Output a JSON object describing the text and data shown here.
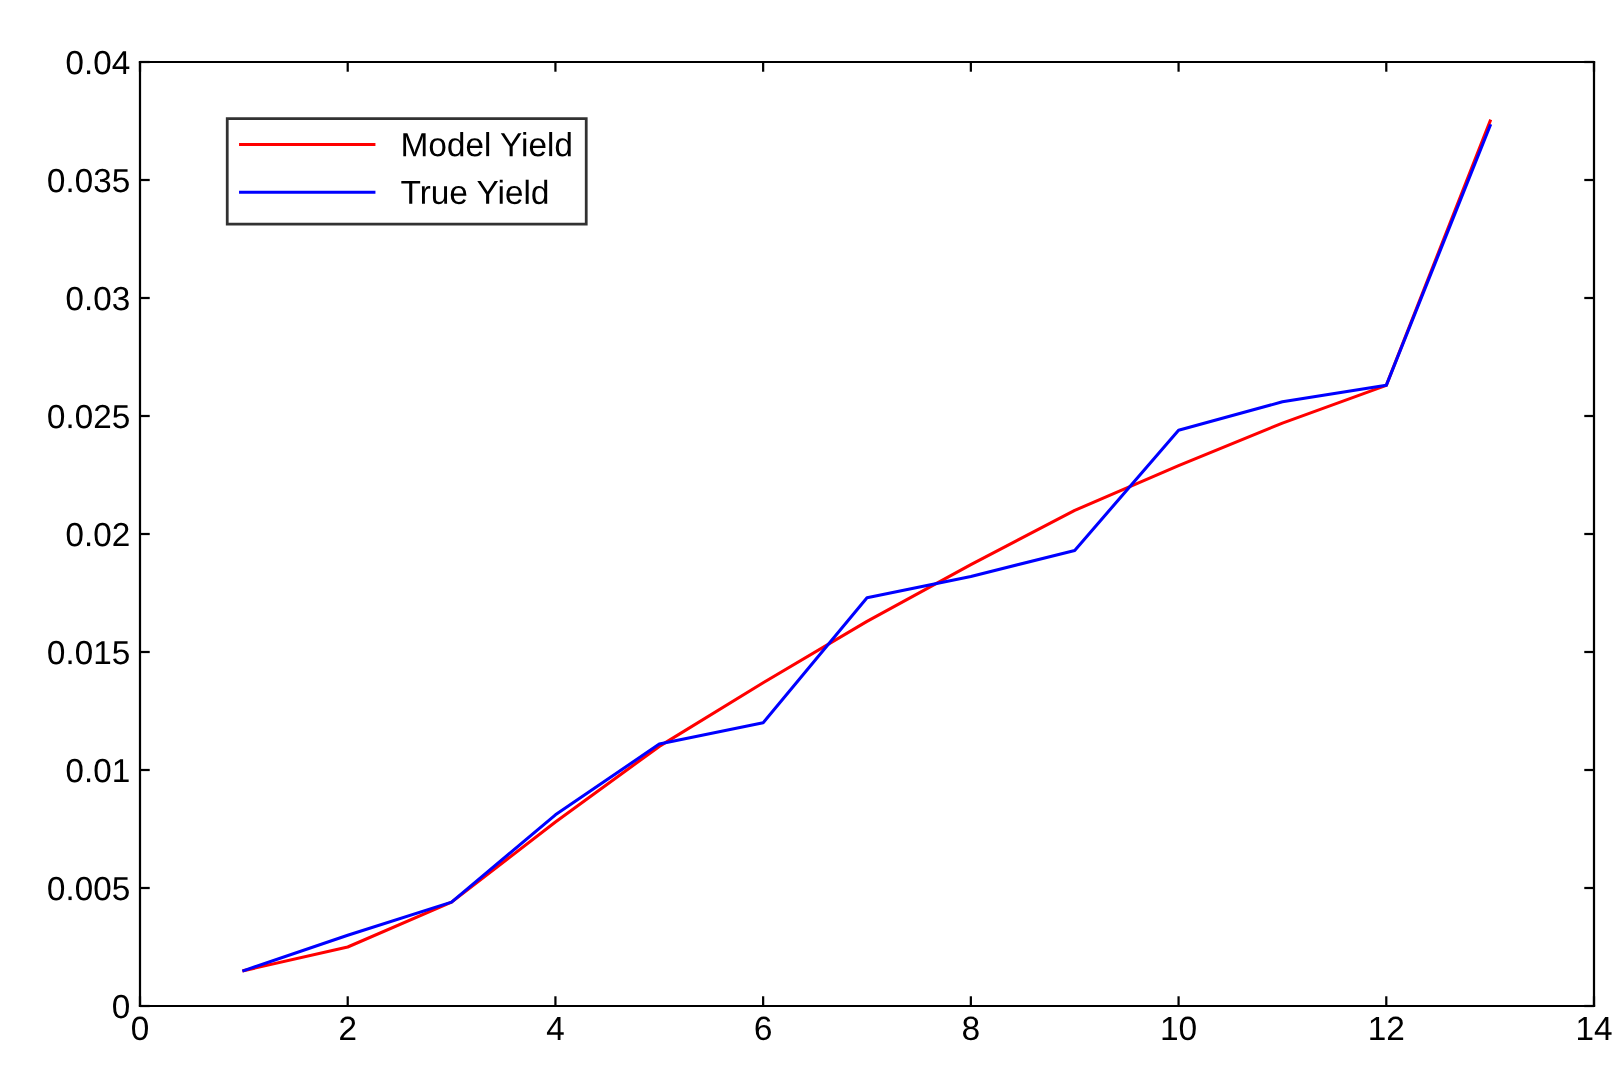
{
  "chart_data": {
    "type": "line",
    "x": [
      1,
      2,
      3,
      4,
      5,
      6,
      7,
      8,
      9,
      10,
      11,
      12,
      13
    ],
    "series": [
      {
        "name": "Model Yield",
        "color": "#ff0000",
        "values": [
          0.0015,
          0.0025,
          0.0044,
          0.0078,
          0.011,
          0.0137,
          0.0163,
          0.0187,
          0.021,
          0.0229,
          0.0247,
          0.0263,
          0.0375
        ]
      },
      {
        "name": "True Yield",
        "color": "#0000ff",
        "values": [
          0.0015,
          0.003,
          0.0044,
          0.0081,
          0.0111,
          0.012,
          0.0173,
          0.0182,
          0.0193,
          0.0244,
          0.0256,
          0.0263,
          0.0373
        ]
      }
    ],
    "xlim": [
      0,
      14
    ],
    "xticks": [
      0,
      2,
      4,
      6,
      8,
      10,
      12,
      14
    ],
    "ylim": [
      0,
      0.04
    ],
    "yticks": [
      0,
      0.005,
      0.01,
      0.015,
      0.02,
      0.025,
      0.03,
      0.035,
      0.04
    ],
    "grid": false,
    "legend": "top left",
    "marker": "none",
    "line_style": "solid"
  }
}
